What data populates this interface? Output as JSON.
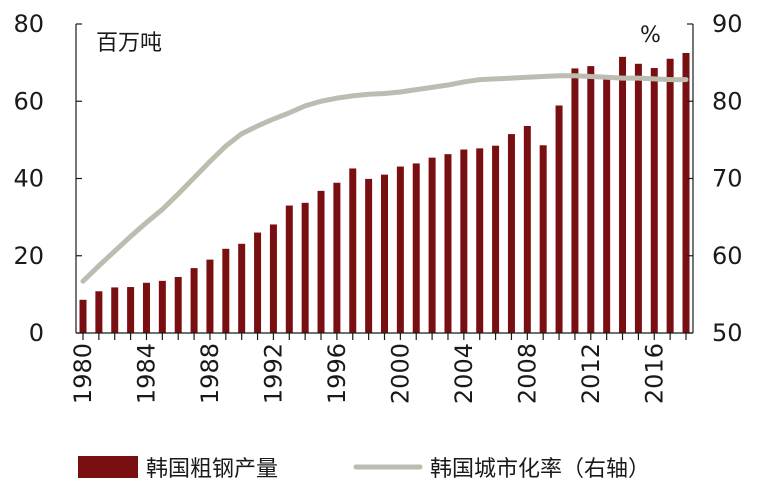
{
  "chart_data": {
    "type": "bar",
    "left_unit": "百万吨",
    "right_unit": "%",
    "x_tick_labels": [
      "1980",
      "1984",
      "1988",
      "1992",
      "1996",
      "2000",
      "2004",
      "2008",
      "2012",
      "2016"
    ],
    "y_left": {
      "min": 0,
      "max": 80,
      "ticks": [
        "0",
        "20",
        "40",
        "60",
        "80"
      ]
    },
    "y_right": {
      "min": 50,
      "max": 90,
      "ticks": [
        "50",
        "60",
        "70",
        "80",
        "90"
      ]
    },
    "years": [
      1980,
      1981,
      1982,
      1983,
      1984,
      1985,
      1986,
      1987,
      1988,
      1989,
      1990,
      1991,
      1992,
      1993,
      1994,
      1995,
      1996,
      1997,
      1998,
      1999,
      2000,
      2001,
      2002,
      2003,
      2004,
      2005,
      2006,
      2007,
      2008,
      2009,
      2010,
      2011,
      2012,
      2013,
      2014,
      2015,
      2016,
      2017,
      2018
    ],
    "series": [
      {
        "name": "韩国粗钢产量",
        "axis": "left",
        "kind": "bar",
        "color": "#7a0f12",
        "values": [
          8.6,
          10.8,
          11.8,
          11.9,
          13.0,
          13.5,
          14.5,
          16.8,
          19.0,
          21.8,
          23.1,
          26.0,
          28.1,
          33.0,
          33.7,
          36.8,
          38.9,
          42.6,
          39.9,
          41.0,
          43.1,
          43.9,
          45.4,
          46.3,
          47.5,
          47.8,
          48.5,
          51.5,
          53.6,
          48.6,
          58.9,
          68.5,
          69.1,
          66.1,
          71.5,
          69.7,
          68.6,
          71.0,
          72.5
        ]
      },
      {
        "name": "韩国城市化率（右轴）",
        "axis": "right",
        "kind": "line",
        "color": "#bcbcb0",
        "values": [
          56.7,
          58.7,
          60.6,
          62.5,
          64.3,
          66.0,
          68.0,
          70.1,
          72.2,
          74.2,
          75.8,
          76.8,
          77.7,
          78.5,
          79.4,
          80.0,
          80.4,
          80.7,
          80.9,
          81.0,
          81.2,
          81.5,
          81.8,
          82.1,
          82.5,
          82.8,
          82.9,
          83.0,
          83.1,
          83.2,
          83.3,
          83.3,
          83.2,
          83.1,
          83.0,
          83.0,
          82.9,
          82.8,
          82.8
        ]
      }
    ],
    "legend_position": "bottom",
    "grid": false
  }
}
